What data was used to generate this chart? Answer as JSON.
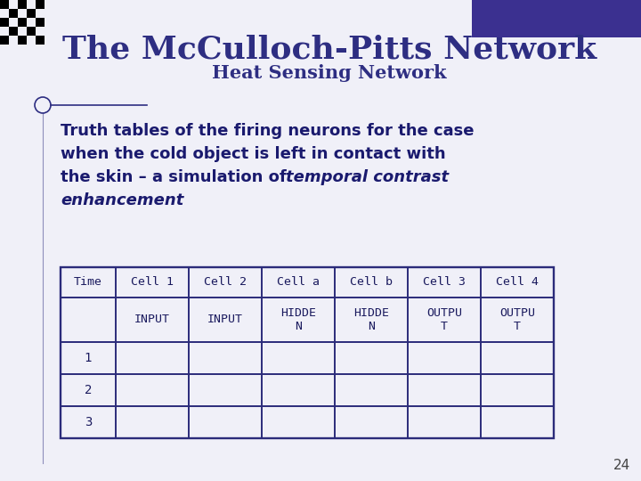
{
  "title": "The McCulloch-Pitts Network",
  "subtitle": "Heat Sensing Network",
  "line1": "Truth tables of the firing neurons for the case",
  "line2": "when the cold object is left in contact with",
  "line3_normal": "the skin – a simulation of ",
  "line3_italic": "temporal contrast",
  "line4_italic": "enhancement",
  "table_headers_row1": [
    "Time",
    "Cell 1",
    "Cell 2",
    "Cell a",
    "Cell b",
    "Cell 3",
    "Cell 4"
  ],
  "table_headers_row2": [
    "",
    "INPUT",
    "INPUT",
    "HIDDE\nN",
    "HIDDE\nN",
    "OUTPU\nT",
    "OUTPU\nT"
  ],
  "table_data": [
    [
      "1",
      "",
      "",
      "",
      "",
      "",
      ""
    ],
    [
      "2",
      "",
      "",
      "",
      "",
      "",
      ""
    ],
    [
      "3",
      "",
      "",
      "",
      "",
      "",
      ""
    ]
  ],
  "slide_bg": "#f0f0f8",
  "title_color": "#2e2e82",
  "subtitle_color": "#2e2e82",
  "body_color": "#1a1a6e",
  "table_text_color": "#1a1a5e",
  "table_border_color": "#2b2b7a",
  "top_right_rect_color": "#3b3090",
  "page_number": "24",
  "checkerboard_colors": [
    "#000000",
    "#f0f0f8"
  ]
}
